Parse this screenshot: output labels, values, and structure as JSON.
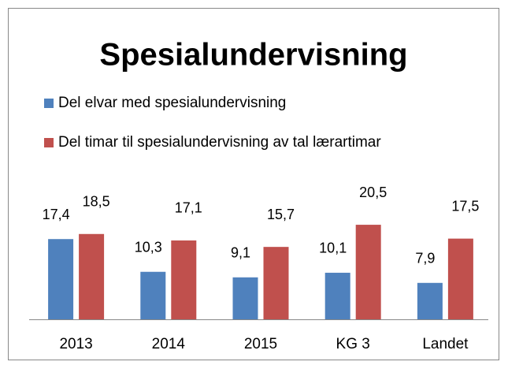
{
  "chart_data": {
    "type": "bar",
    "title": "Spesialundervisning",
    "categories": [
      "2013",
      "2014",
      "2015",
      "KG 3",
      "Landet"
    ],
    "series": [
      {
        "name": "Del elvar med spesialundervisning",
        "color": "#4f81bd",
        "values": [
          17.4,
          10.3,
          9.1,
          10.1,
          7.9
        ],
        "value_labels": [
          "17,4",
          "10,3",
          "9,1",
          "10,1",
          "7,9"
        ]
      },
      {
        "name": "Del timar til spesialundervisning av tal lærartimar",
        "color": "#c0504d",
        "values": [
          18.5,
          17.1,
          15.7,
          20.5,
          17.5
        ],
        "value_labels": [
          "18,5",
          "17,1",
          "15,7",
          "20,5",
          "17,5"
        ]
      }
    ]
  }
}
